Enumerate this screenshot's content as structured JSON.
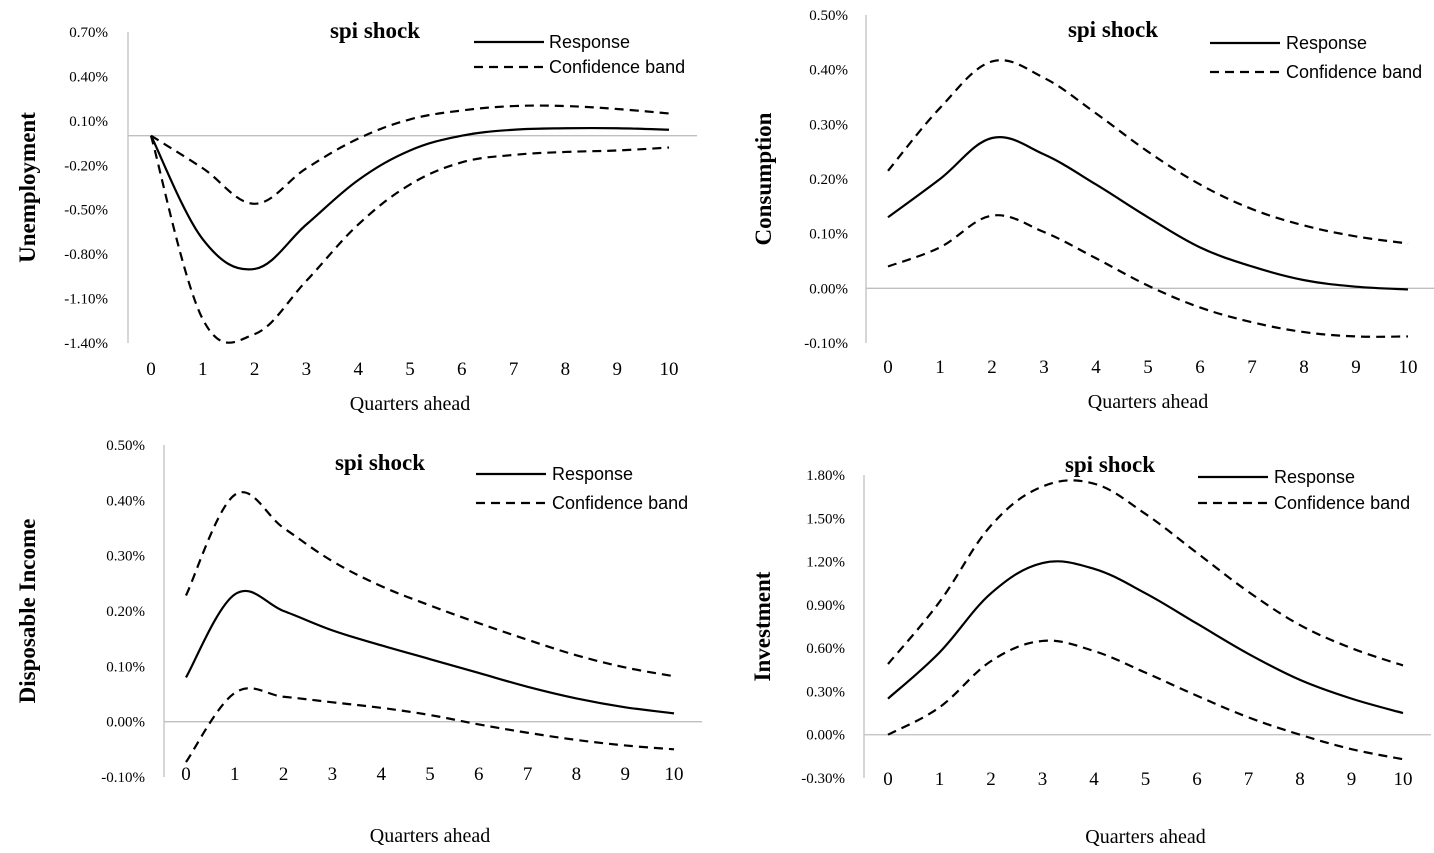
{
  "chart_data": [
    {
      "type": "line",
      "title": "spi shock",
      "xlabel": "Quarters ahead",
      "ylabel": "Unemployment",
      "x": [
        0,
        1,
        2,
        3,
        4,
        5,
        6,
        7,
        8,
        9,
        10
      ],
      "x_tick_labels": [
        "0",
        "1",
        "2",
        "3",
        "4",
        "5",
        "6",
        "7",
        "8",
        "9",
        "10"
      ],
      "y_tick_labels": [
        "0.70%",
        "0.40%",
        "0.10%",
        "-0.20%",
        "-0.50%",
        "-0.80%",
        "-1.10%",
        "-1.40%"
      ],
      "ylim": [
        -1.4,
        0.7
      ],
      "series": [
        {
          "name": "Response",
          "style": "solid",
          "values": [
            0.0,
            -0.7,
            -0.9,
            -0.6,
            -0.3,
            -0.1,
            0.0,
            0.04,
            0.05,
            0.05,
            0.04
          ]
        },
        {
          "name": "Confidence band",
          "style": "dashed",
          "values": [
            0.0,
            -0.22,
            -0.46,
            -0.22,
            -0.02,
            0.11,
            0.17,
            0.2,
            0.2,
            0.18,
            0.15
          ]
        },
        {
          "style": "dashed",
          "values": [
            0.0,
            -1.24,
            -1.34,
            -0.98,
            -0.6,
            -0.33,
            -0.18,
            -0.13,
            -0.11,
            -0.1,
            -0.08
          ]
        }
      ],
      "legend": [
        "Response",
        "Confidence band"
      ],
      "legend_position": "top-right",
      "grid": false
    },
    {
      "type": "line",
      "title": "spi shock",
      "xlabel": "Quarters ahead",
      "ylabel": "Consumption",
      "x": [
        0,
        1,
        2,
        3,
        4,
        5,
        6,
        7,
        8,
        9,
        10
      ],
      "x_tick_labels": [
        "0",
        "1",
        "2",
        "3",
        "4",
        "5",
        "6",
        "7",
        "8",
        "9",
        "10"
      ],
      "y_tick_labels": [
        "0.50%",
        "0.40%",
        "0.30%",
        "0.20%",
        "0.10%",
        "0.00%",
        "-0.10%"
      ],
      "ylim": [
        -0.1,
        0.5
      ],
      "series": [
        {
          "name": "Response",
          "style": "solid",
          "values": [
            0.13,
            0.2,
            0.275,
            0.245,
            0.19,
            0.13,
            0.075,
            0.04,
            0.015,
            0.003,
            -0.002
          ]
        },
        {
          "name": "Confidence band",
          "style": "dashed",
          "values": [
            0.215,
            0.33,
            0.415,
            0.385,
            0.32,
            0.25,
            0.19,
            0.145,
            0.115,
            0.095,
            0.082
          ]
        },
        {
          "style": "dashed",
          "values": [
            0.04,
            0.075,
            0.133,
            0.103,
            0.055,
            0.005,
            -0.035,
            -0.062,
            -0.08,
            -0.088,
            -0.088
          ]
        }
      ],
      "legend": [
        "Response",
        "Confidence band"
      ],
      "legend_position": "top-right",
      "grid": false
    },
    {
      "type": "line",
      "title": "spi shock",
      "xlabel": "Quarters ahead",
      "ylabel": "Disposable Income",
      "x": [
        0,
        1,
        2,
        3,
        4,
        5,
        6,
        7,
        8,
        9,
        10
      ],
      "x_tick_labels": [
        "0",
        "1",
        "2",
        "3",
        "4",
        "5",
        "6",
        "7",
        "8",
        "9",
        "10"
      ],
      "y_tick_labels": [
        "0.50%",
        "0.40%",
        "0.30%",
        "0.20%",
        "0.10%",
        "0.00%",
        "-0.10%"
      ],
      "ylim": [
        -0.1,
        0.5
      ],
      "series": [
        {
          "name": "Response",
          "style": "solid",
          "values": [
            0.08,
            0.23,
            0.2,
            0.165,
            0.138,
            0.113,
            0.088,
            0.063,
            0.042,
            0.026,
            0.015
          ]
        },
        {
          "name": "Confidence band",
          "style": "dashed",
          "values": [
            0.228,
            0.41,
            0.35,
            0.29,
            0.245,
            0.21,
            0.178,
            0.148,
            0.12,
            0.098,
            0.082
          ]
        },
        {
          "style": "dashed",
          "values": [
            -0.073,
            0.052,
            0.045,
            0.035,
            0.025,
            0.012,
            -0.005,
            -0.02,
            -0.033,
            -0.043,
            -0.05
          ]
        }
      ],
      "legend": [
        "Response",
        "Confidence band"
      ],
      "legend_position": "top-right",
      "grid": false
    },
    {
      "type": "line",
      "title": "spi shock",
      "xlabel": "Quarters ahead",
      "ylabel": "Investment",
      "x": [
        0,
        1,
        2,
        3,
        4,
        5,
        6,
        7,
        8,
        9,
        10
      ],
      "x_tick_labels": [
        "0",
        "1",
        "2",
        "3",
        "4",
        "5",
        "6",
        "7",
        "8",
        "9",
        "10"
      ],
      "y_tick_labels": [
        "1.80%",
        "1.50%",
        "1.20%",
        "0.90%",
        "0.60%",
        "0.30%",
        "0.00%",
        "-0.30%"
      ],
      "ylim": [
        -0.3,
        1.8
      ],
      "series": [
        {
          "name": "Response",
          "style": "solid",
          "values": [
            0.25,
            0.57,
            0.98,
            1.19,
            1.15,
            0.98,
            0.77,
            0.56,
            0.38,
            0.25,
            0.15
          ]
        },
        {
          "name": "Confidence band",
          "style": "dashed",
          "values": [
            0.49,
            0.92,
            1.45,
            1.72,
            1.74,
            1.53,
            1.26,
            0.99,
            0.76,
            0.6,
            0.48
          ]
        },
        {
          "style": "dashed",
          "values": [
            0.0,
            0.19,
            0.51,
            0.65,
            0.58,
            0.43,
            0.27,
            0.12,
            0.0,
            -0.1,
            -0.17
          ]
        }
      ],
      "legend": [
        "Response",
        "Confidence band"
      ],
      "legend_position": "top-right",
      "grid": false
    }
  ]
}
